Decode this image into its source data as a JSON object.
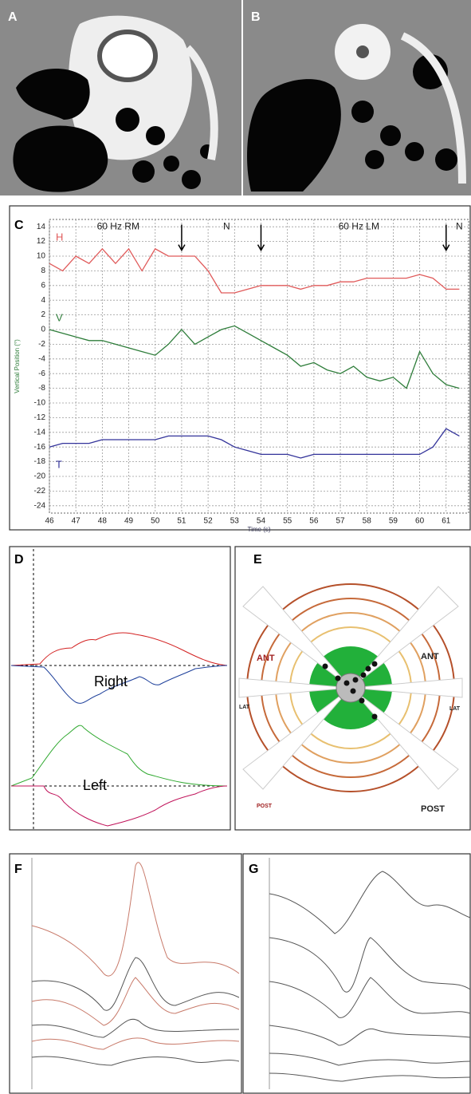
{
  "panels": {
    "a": "A",
    "b": "B",
    "c": "C",
    "d": "D",
    "e": "E",
    "f": "F",
    "g": "G"
  },
  "panel_d": {
    "labels": [
      "Right",
      "Left"
    ]
  },
  "panel_e": {
    "labels": [
      "ANT",
      "ANT",
      "LAT",
      "LAT",
      "POST",
      "POST"
    ]
  },
  "chart_data": {
    "type": "line",
    "y_label": "Vertical Position (°)",
    "x_label": "Time (s)",
    "annotations": [
      "60 Hz RM",
      "N",
      "60 Hz LM",
      "N"
    ],
    "arrows": [
      51,
      54,
      61
    ],
    "x": [
      46,
      46.5,
      47,
      47.5,
      48,
      48.5,
      49,
      49.5,
      50,
      50.5,
      51,
      51.5,
      52,
      52.5,
      53,
      53.5,
      54,
      54.5,
      55,
      55.5,
      56,
      56.5,
      57,
      57.5,
      58,
      58.5,
      59,
      59.5,
      60,
      60.5,
      61,
      61.5
    ],
    "series": [
      {
        "name": "H",
        "color": "#e05a5a",
        "values": [
          9,
          8,
          10,
          9,
          11,
          9,
          11,
          8,
          11,
          10,
          10,
          10,
          8,
          5,
          5,
          5.5,
          6,
          6,
          6,
          5.5,
          6,
          6,
          6.5,
          6.5,
          7,
          7,
          7,
          7,
          7.5,
          7,
          5.5,
          5.5
        ]
      },
      {
        "name": "V",
        "color": "#2e7d3a",
        "values": [
          0,
          -0.5,
          -1,
          -1.5,
          -1.5,
          -2,
          -2.5,
          -3,
          -3.5,
          -2,
          0,
          -2,
          -1,
          0,
          0.5,
          -0.5,
          -1.5,
          -2.5,
          -3.5,
          -5,
          -4.5,
          -5.5,
          -6,
          -5,
          -6.5,
          -7,
          -6.5,
          -8,
          -3,
          -6,
          -7.5,
          -8
        ]
      },
      {
        "name": "T",
        "color": "#33339a",
        "values": [
          -16,
          -15.5,
          -15.5,
          -15.5,
          -15,
          -15,
          -15,
          -15,
          -15,
          -14.5,
          -14.5,
          -14.5,
          -14.5,
          -15,
          -16,
          -16.5,
          -17,
          -17,
          -17,
          -17.5,
          -17,
          -17,
          -17,
          -17,
          -17,
          -17,
          -17,
          -17,
          -17,
          -16,
          -13.5,
          -14.5
        ]
      }
    ],
    "xlim": [
      46,
      61.85
    ],
    "xticks": [
      46,
      47,
      48,
      49,
      50,
      51,
      52,
      53,
      54,
      55,
      56,
      57,
      58,
      59,
      60,
      61
    ],
    "ylim": [
      -25,
      15
    ],
    "yticks": [
      14,
      12,
      10,
      8,
      6,
      4,
      2,
      0,
      -2,
      -4,
      -6,
      -8,
      -10,
      -12,
      -14,
      -16,
      -18,
      -20,
      -22,
      -24
    ],
    "grid": true
  }
}
